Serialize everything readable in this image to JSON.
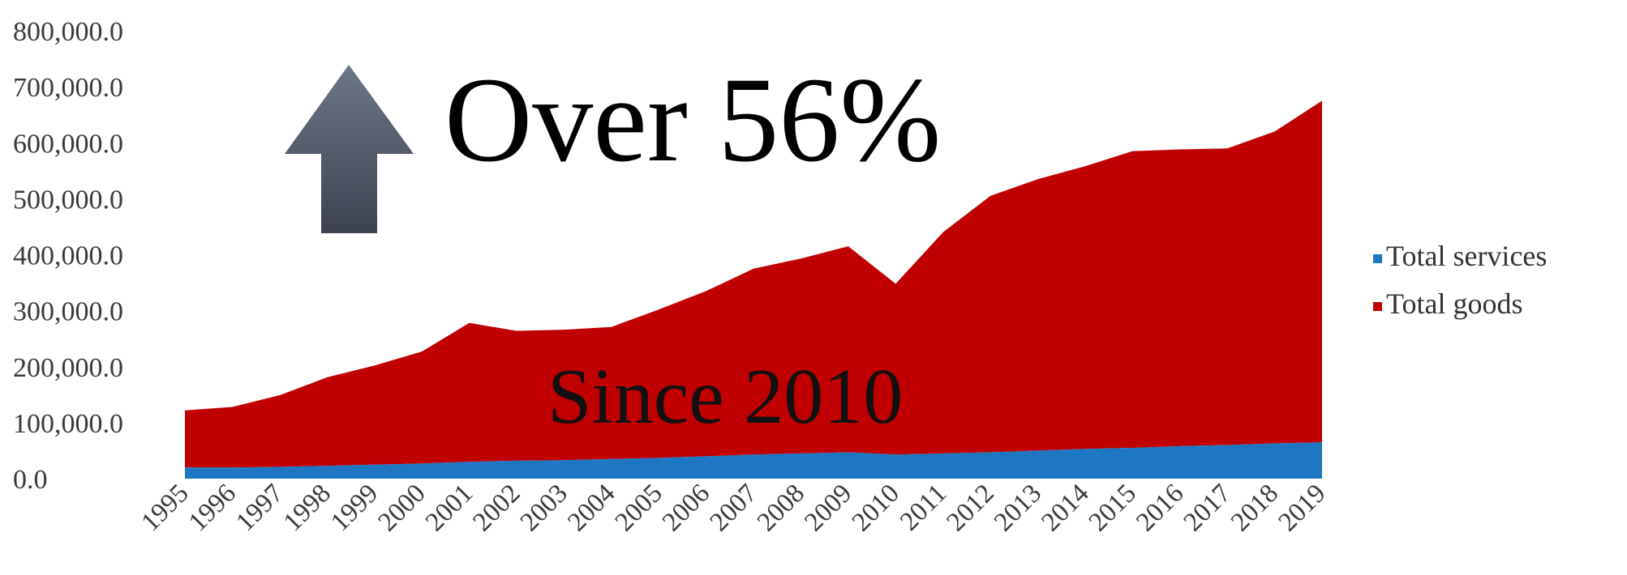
{
  "chart_data": {
    "type": "area",
    "stacked": true,
    "x": [
      "1995",
      "1996",
      "1997",
      "1998",
      "1999",
      "2000",
      "2001",
      "2002",
      "2003",
      "2004",
      "2005",
      "2006",
      "2007",
      "2008",
      "2009",
      "2010",
      "2011",
      "2012",
      "2013",
      "2014",
      "2015",
      "2016",
      "2017",
      "2018",
      "2019"
    ],
    "series": [
      {
        "name": "Total services",
        "color": "#1f77c4",
        "values": [
          20000,
          20000,
          21000,
          23000,
          25000,
          27000,
          30000,
          32000,
          33000,
          35000,
          37000,
          40000,
          43000,
          45000,
          47000,
          43000,
          45000,
          47000,
          50000,
          53000,
          55000,
          58000,
          60000,
          63000,
          65000
        ]
      },
      {
        "name": "Total goods",
        "color": "#c00000",
        "values": [
          102000,
          108000,
          128000,
          158000,
          177000,
          200000,
          248000,
          232000,
          233000,
          236000,
          265000,
          295000,
          332000,
          348000,
          368000,
          305000,
          395000,
          458000,
          485000,
          505000,
          530000,
          530000,
          530000,
          557000,
          610000
        ]
      }
    ],
    "ylim": [
      0,
      800000
    ],
    "yticks": [
      "0.0",
      "100,000.0",
      "200,000.0",
      "300,000.0",
      "400,000.0",
      "500,000.0",
      "600,000.0",
      "700,000.0",
      "800,000.0"
    ],
    "grid": false,
    "legend_position": "right",
    "annotations": {
      "headline": "Over 56%",
      "subline": "Since 2010",
      "arrow": "up-arrow-icon"
    }
  }
}
